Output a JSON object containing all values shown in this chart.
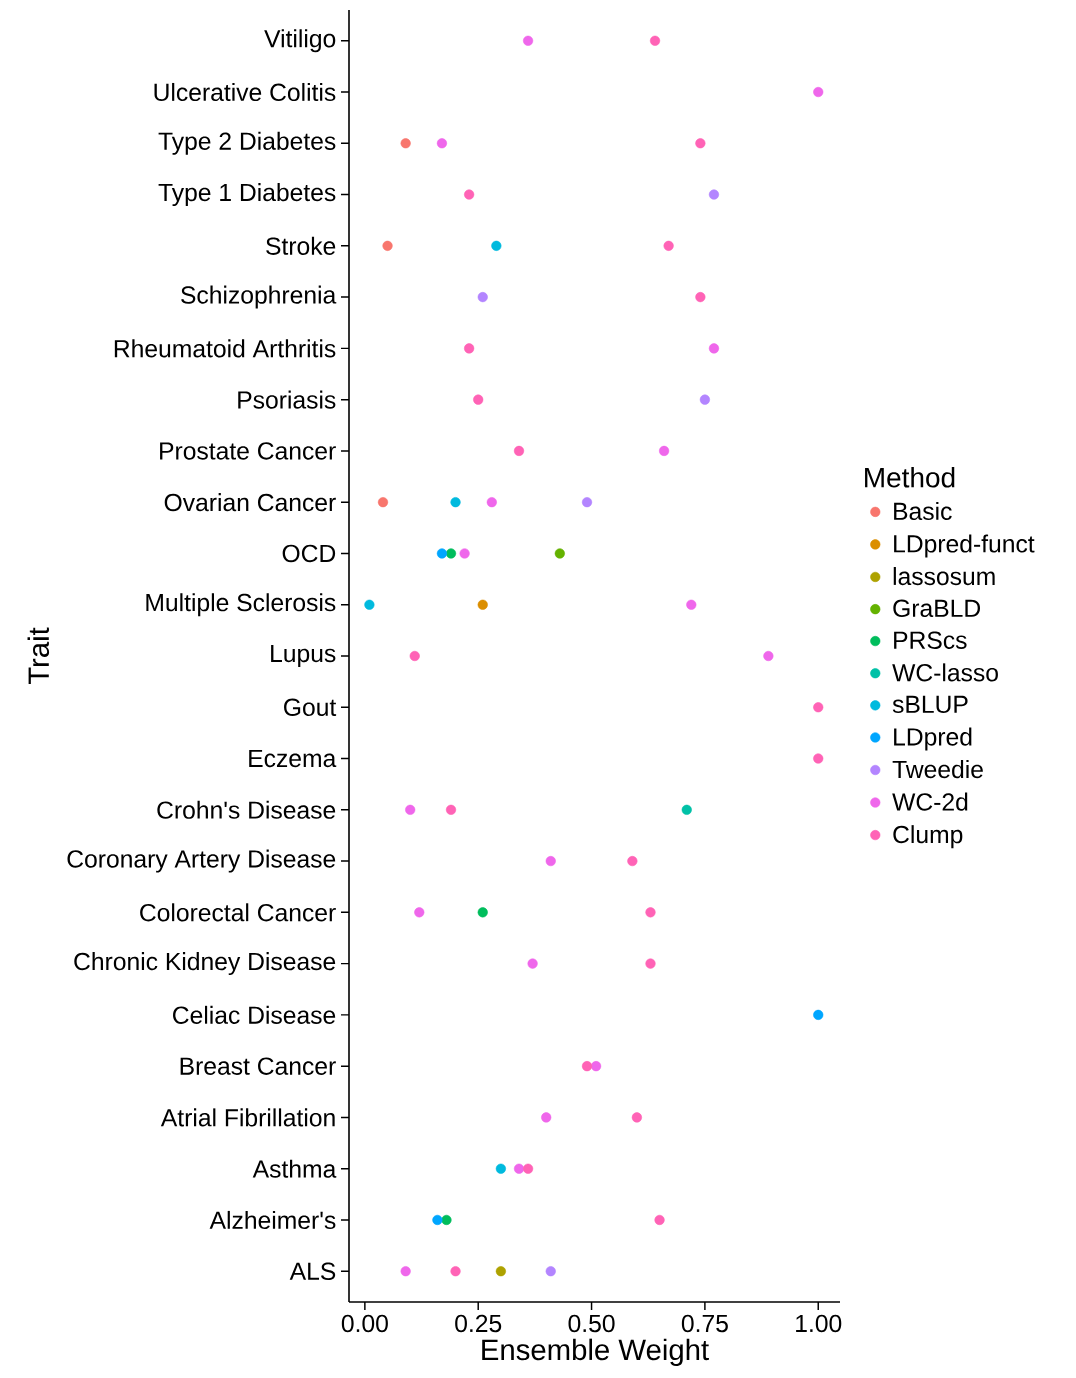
{
  "chart_data": {
    "type": "scatter",
    "orientation": "horizontal",
    "xlabel": "Ensemble Weight",
    "ylabel": "Trait",
    "legend_title": "Method",
    "legend": "right",
    "marker": "circle",
    "categories": [
      "Vitiligo",
      "Ulcerative Colitis",
      "Type 2 Diabetes",
      "Type 1 Diabetes",
      "Stroke",
      "Schizophrenia",
      "Rheumatoid Arthritis",
      "Psoriasis",
      "Prostate Cancer",
      "Ovarian Cancer",
      "OCD",
      "Multiple Sclerosis",
      "Lupus",
      "Gout",
      "Eczema",
      "Crohn's Disease",
      "Coronary Artery Disease",
      "Colorectal Cancer",
      "Chronic Kidney Disease",
      "Celiac Disease",
      "Breast Cancer",
      "Atrial Fibrillation",
      "Asthma",
      "Alzheimer's",
      "ALS"
    ],
    "xlim": [
      -0.035,
      1.048
    ],
    "xticks": [
      {
        "value": 0,
        "label": "0.00"
      },
      {
        "value": 0.25,
        "label": "0.25"
      },
      {
        "value": 0.5,
        "label": "0.50"
      },
      {
        "value": 0.75,
        "label": "0.75"
      },
      {
        "value": 1,
        "label": "1.00"
      }
    ],
    "series": [
      {
        "name": "Basic",
        "color": "#f8766d",
        "values": [
          null,
          null,
          0.09,
          null,
          0.05,
          null,
          null,
          null,
          null,
          0.04,
          null,
          null,
          null,
          null,
          null,
          null,
          null,
          null,
          null,
          null,
          null,
          null,
          null,
          null,
          null
        ]
      },
      {
        "name": "LDpred-funct",
        "color": "#db8e00",
        "values": [
          null,
          null,
          null,
          null,
          null,
          null,
          null,
          null,
          null,
          null,
          null,
          0.26,
          null,
          null,
          null,
          null,
          null,
          null,
          null,
          null,
          null,
          null,
          null,
          null,
          null
        ]
      },
      {
        "name": "lassosum",
        "color": "#aea200",
        "values": [
          null,
          null,
          null,
          null,
          null,
          null,
          null,
          null,
          null,
          null,
          null,
          null,
          null,
          null,
          null,
          null,
          null,
          null,
          null,
          null,
          null,
          null,
          null,
          null,
          0.3
        ]
      },
      {
        "name": "GraBLD",
        "color": "#64b200",
        "values": [
          null,
          null,
          null,
          null,
          null,
          null,
          null,
          null,
          null,
          null,
          0.43,
          null,
          null,
          null,
          null,
          null,
          null,
          null,
          null,
          null,
          null,
          null,
          null,
          null,
          null
        ]
      },
      {
        "name": "PRScs",
        "color": "#00bd5c",
        "values": [
          null,
          null,
          null,
          null,
          null,
          null,
          null,
          null,
          null,
          null,
          0.19,
          null,
          null,
          null,
          null,
          null,
          null,
          0.26,
          null,
          null,
          null,
          null,
          null,
          0.18,
          null
        ]
      },
      {
        "name": "WC-lasso",
        "color": "#00c1a7",
        "values": [
          null,
          null,
          null,
          null,
          null,
          null,
          null,
          null,
          null,
          null,
          null,
          null,
          null,
          null,
          null,
          0.71,
          null,
          null,
          null,
          null,
          null,
          null,
          null,
          null,
          null
        ]
      },
      {
        "name": "sBLUP",
        "color": "#00bade",
        "values": [
          null,
          null,
          null,
          null,
          0.29,
          null,
          null,
          null,
          null,
          0.2,
          null,
          0.01,
          null,
          null,
          null,
          null,
          null,
          null,
          null,
          null,
          null,
          null,
          0.3,
          null,
          null
        ]
      },
      {
        "name": "LDpred",
        "color": "#00a6ff",
        "values": [
          null,
          null,
          null,
          null,
          null,
          null,
          null,
          null,
          null,
          null,
          0.17,
          null,
          null,
          null,
          null,
          null,
          null,
          null,
          null,
          1.0,
          null,
          null,
          null,
          0.16,
          null
        ]
      },
      {
        "name": "Tweedie",
        "color": "#b385ff",
        "values": [
          null,
          null,
          null,
          0.77,
          null,
          0.26,
          null,
          0.75,
          null,
          0.49,
          null,
          null,
          null,
          null,
          null,
          null,
          null,
          null,
          null,
          null,
          null,
          null,
          null,
          null,
          0.41
        ]
      },
      {
        "name": "WC-2d",
        "color": "#ef67eb",
        "values": [
          0.36,
          1.0,
          0.17,
          null,
          null,
          null,
          0.77,
          null,
          0.66,
          0.28,
          0.22,
          0.72,
          0.89,
          null,
          null,
          0.1,
          0.41,
          0.12,
          0.37,
          null,
          0.51,
          0.4,
          0.34,
          null,
          0.09
        ]
      },
      {
        "name": "Clump",
        "color": "#ff63b6",
        "values": [
          0.64,
          null,
          0.74,
          0.23,
          0.67,
          0.74,
          0.23,
          0.25,
          0.34,
          null,
          null,
          null,
          0.11,
          1.0,
          1.0,
          0.19,
          0.59,
          0.63,
          0.63,
          null,
          0.49,
          0.6,
          0.36,
          0.65,
          0.2
        ]
      }
    ]
  }
}
